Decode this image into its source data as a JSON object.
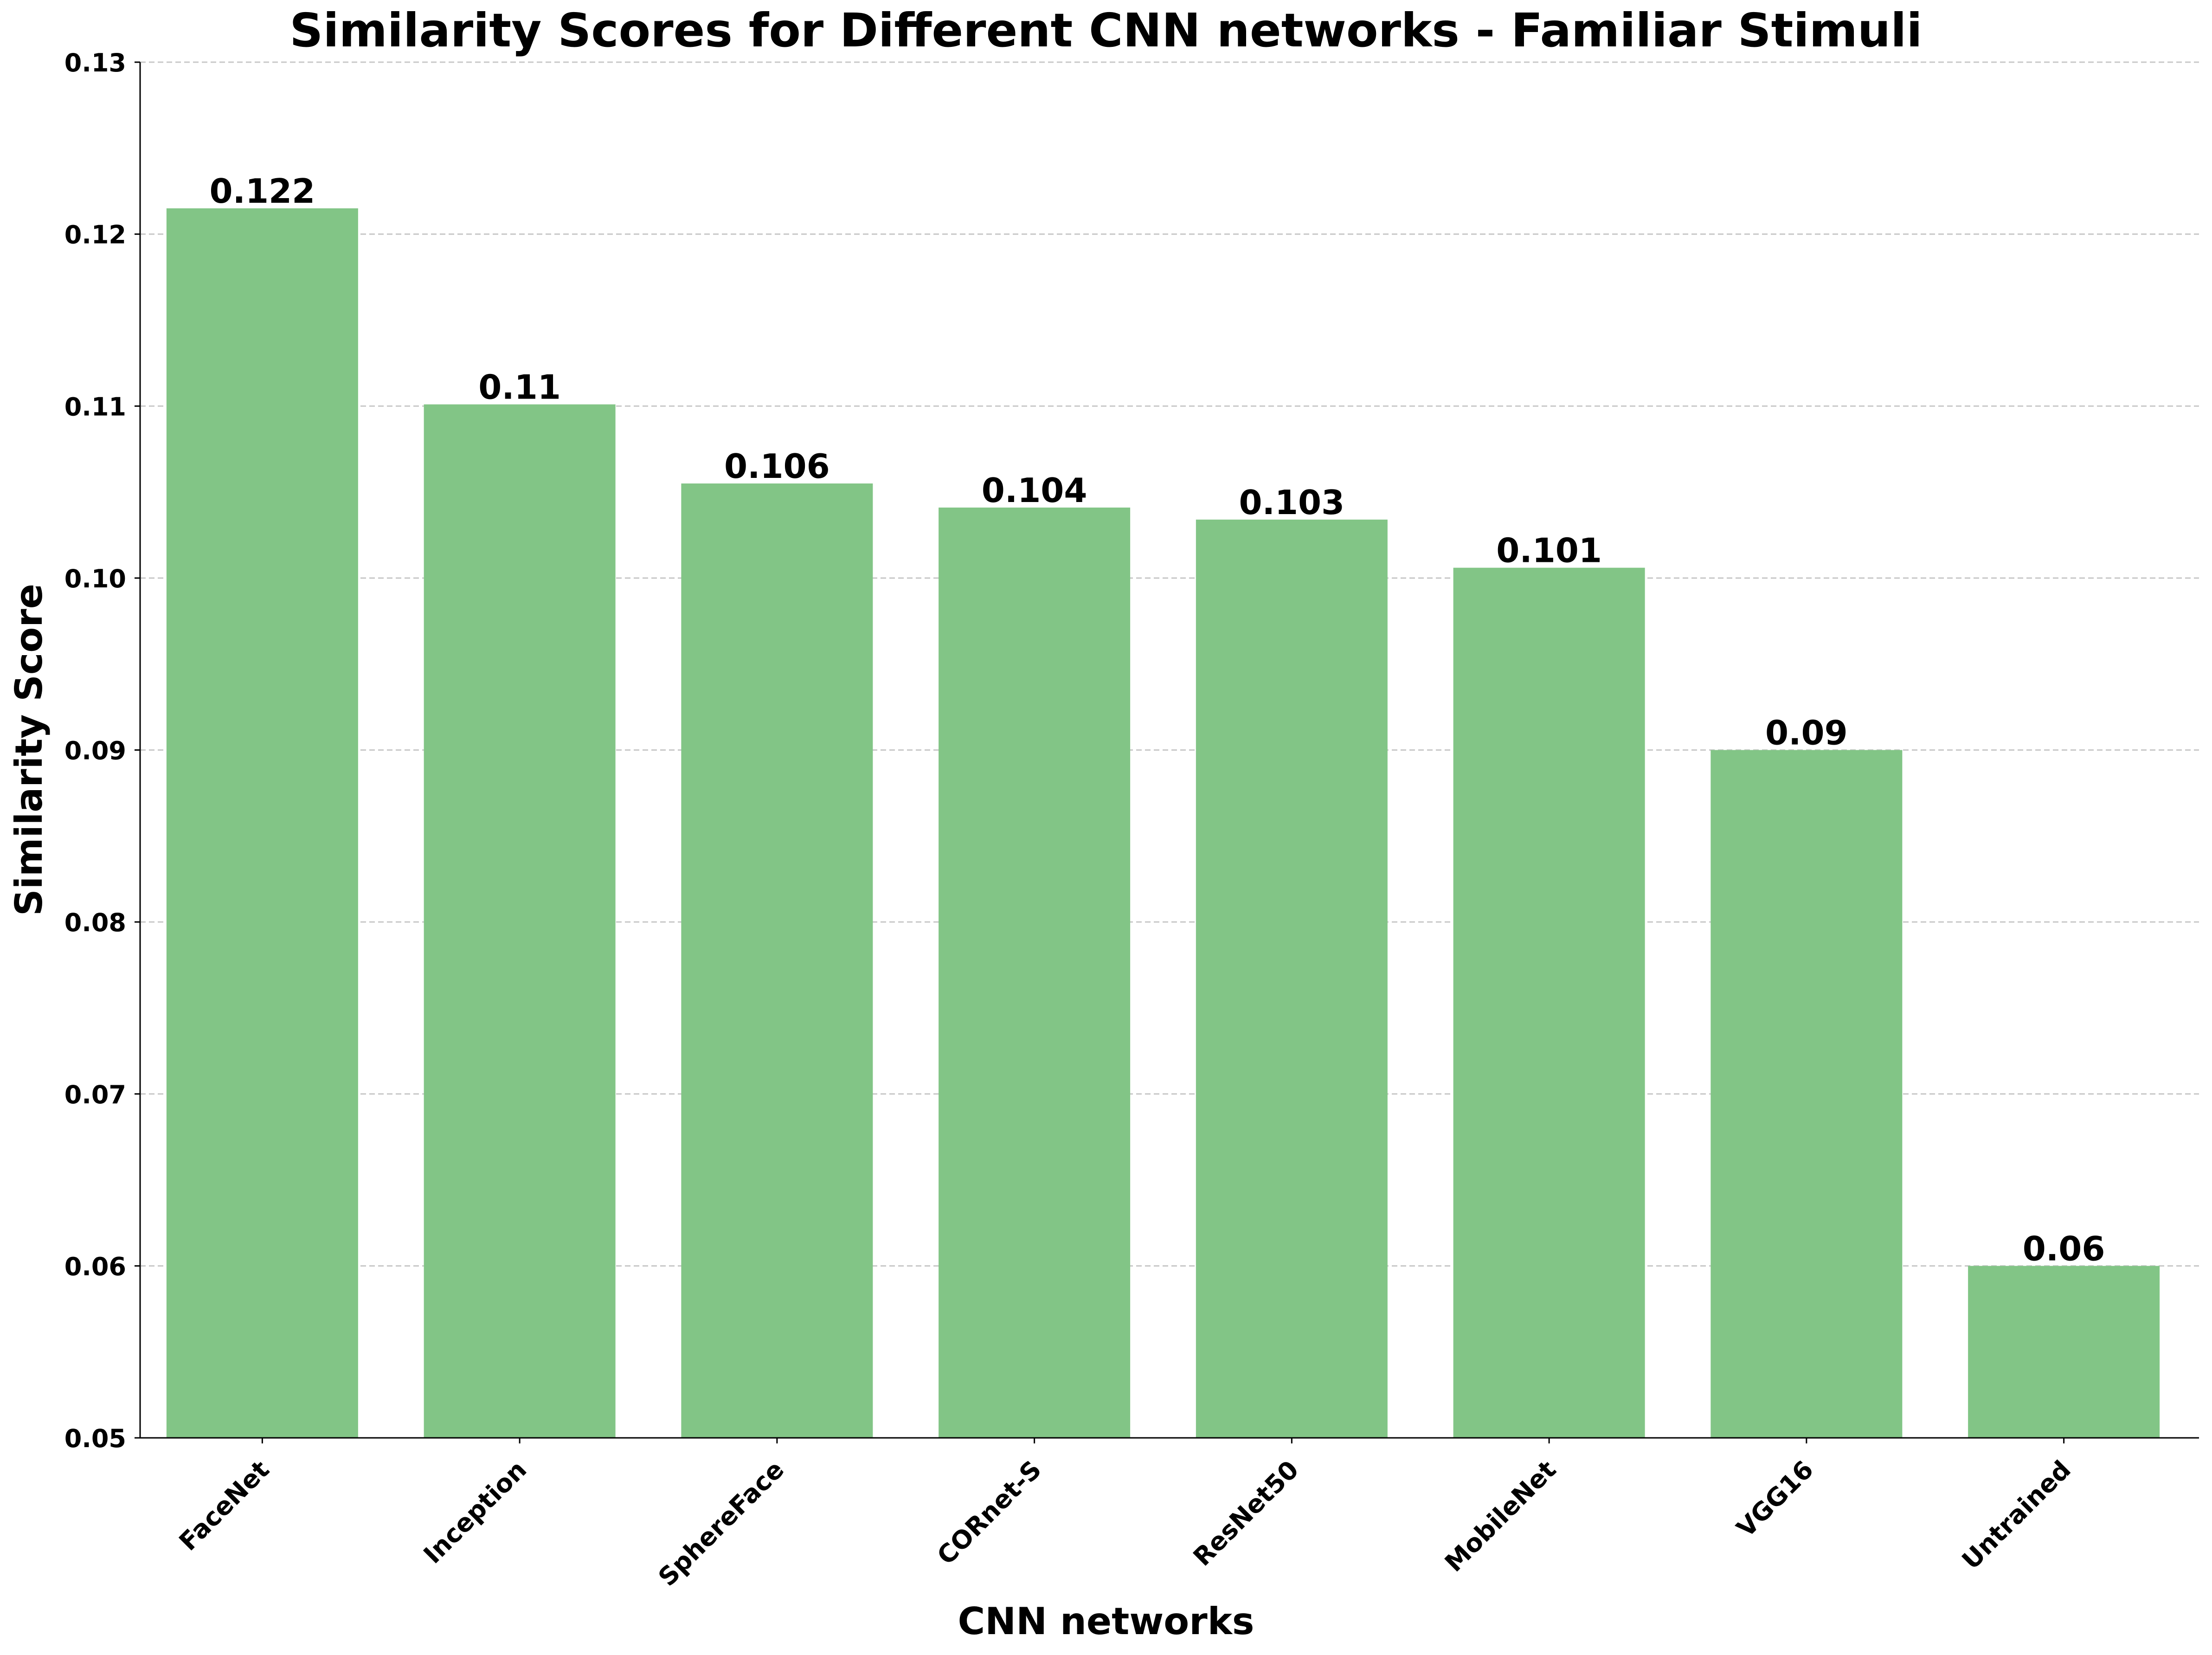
{
  "chart_data": {
    "type": "bar",
    "title": "Similarity Scores for Different CNN networks - Familiar Stimuli",
    "xlabel": "CNN networks",
    "ylabel": "Similarity Score",
    "categories": [
      "FaceNet",
      "Inception",
      "SphereFace",
      "CORnet-S",
      "ResNet50",
      "MobileNet",
      "VGG16",
      "Untrained"
    ],
    "values": [
      0.1215,
      0.1101,
      0.1055,
      0.1041,
      0.1034,
      0.1006,
      0.09,
      0.06
    ],
    "data_labels": [
      "0.122",
      "0.11",
      "0.106",
      "0.104",
      "0.103",
      "0.101",
      "0.09",
      "0.06"
    ],
    "ylim": [
      0.05,
      0.13
    ],
    "yticks": [
      0.05,
      0.06,
      0.07,
      0.08,
      0.09,
      0.1,
      0.11,
      0.12,
      0.13
    ],
    "ytick_labels": [
      "0.05",
      "0.06",
      "0.07",
      "0.08",
      "0.09",
      "0.10",
      "0.11",
      "0.12",
      "0.13"
    ],
    "grid": "horizontal, dashed",
    "bar_color": "#82c586",
    "gridline_color": "#c8c8c8",
    "axis_color": "#000000"
  }
}
